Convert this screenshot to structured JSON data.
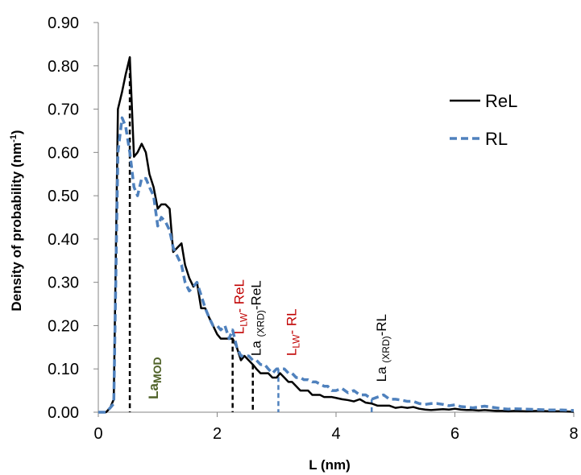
{
  "chart_data": {
    "type": "line",
    "xlabel": "L (nm)",
    "ylabel": "Density of probability (nm",
    "ylabel_sup": "-1",
    "ylabel_close": ")",
    "xlim": [
      0,
      8
    ],
    "ylim": [
      0,
      0.9
    ],
    "x_ticks": [
      0,
      2,
      4,
      6,
      8
    ],
    "x_tick_labels": [
      "0",
      "2",
      "4",
      "6",
      "8"
    ],
    "y_ticks": [
      0,
      0.1,
      0.2,
      0.3,
      0.4,
      0.5,
      0.6,
      0.7,
      0.8,
      0.9
    ],
    "y_tick_labels": [
      "0.00",
      "0.10",
      "0.20",
      "0.30",
      "0.40",
      "0.50",
      "0.60",
      "0.70",
      "0.80",
      "0.90"
    ],
    "grid": false,
    "legend_position": "top-right",
    "series": [
      {
        "name": "ReL",
        "color": "#000000",
        "style": "solid",
        "points": [
          [
            0.0,
            0.0
          ],
          [
            0.13,
            0.0
          ],
          [
            0.2,
            0.01
          ],
          [
            0.26,
            0.03
          ],
          [
            0.33,
            0.7
          ],
          [
            0.4,
            0.74
          ],
          [
            0.46,
            0.78
          ],
          [
            0.53,
            0.82
          ],
          [
            0.6,
            0.59
          ],
          [
            0.66,
            0.6
          ],
          [
            0.73,
            0.62
          ],
          [
            0.8,
            0.6
          ],
          [
            0.86,
            0.55
          ],
          [
            0.93,
            0.52
          ],
          [
            1.0,
            0.47
          ],
          [
            1.06,
            0.48
          ],
          [
            1.13,
            0.48
          ],
          [
            1.2,
            0.47
          ],
          [
            1.26,
            0.37
          ],
          [
            1.33,
            0.38
          ],
          [
            1.4,
            0.39
          ],
          [
            1.46,
            0.34
          ],
          [
            1.53,
            0.31
          ],
          [
            1.6,
            0.29
          ],
          [
            1.66,
            0.3
          ],
          [
            1.73,
            0.24
          ],
          [
            1.8,
            0.24
          ],
          [
            1.86,
            0.22
          ],
          [
            1.93,
            0.2
          ],
          [
            2.0,
            0.18
          ],
          [
            2.06,
            0.17
          ],
          [
            2.13,
            0.17
          ],
          [
            2.2,
            0.17
          ],
          [
            2.26,
            0.17
          ],
          [
            2.33,
            0.15
          ],
          [
            2.4,
            0.12
          ],
          [
            2.46,
            0.13
          ],
          [
            2.53,
            0.12
          ],
          [
            2.6,
            0.11
          ],
          [
            2.66,
            0.1
          ],
          [
            2.73,
            0.09
          ],
          [
            2.8,
            0.09
          ],
          [
            2.86,
            0.09
          ],
          [
            2.93,
            0.08
          ],
          [
            3.0,
            0.08
          ],
          [
            3.06,
            0.09
          ],
          [
            3.13,
            0.08
          ],
          [
            3.2,
            0.07
          ],
          [
            3.26,
            0.07
          ],
          [
            3.33,
            0.06
          ],
          [
            3.4,
            0.05
          ],
          [
            3.46,
            0.05
          ],
          [
            3.53,
            0.05
          ],
          [
            3.6,
            0.04
          ],
          [
            3.66,
            0.04
          ],
          [
            3.73,
            0.04
          ],
          [
            3.8,
            0.035
          ],
          [
            3.86,
            0.035
          ],
          [
            3.93,
            0.035
          ],
          [
            4.0,
            0.033
          ],
          [
            4.1,
            0.03
          ],
          [
            4.2,
            0.028
          ],
          [
            4.3,
            0.025
          ],
          [
            4.4,
            0.03
          ],
          [
            4.5,
            0.022
          ],
          [
            4.6,
            0.02
          ],
          [
            4.7,
            0.015
          ],
          [
            4.8,
            0.015
          ],
          [
            4.9,
            0.015
          ],
          [
            5.0,
            0.01
          ],
          [
            5.1,
            0.012
          ],
          [
            5.2,
            0.01
          ],
          [
            5.3,
            0.012
          ],
          [
            5.4,
            0.008
          ],
          [
            5.5,
            0.006
          ],
          [
            5.6,
            0.005
          ],
          [
            5.7,
            0.006
          ],
          [
            5.8,
            0.007
          ],
          [
            5.9,
            0.006
          ],
          [
            6.0,
            0.008
          ],
          [
            6.1,
            0.006
          ],
          [
            6.2,
            0.005
          ],
          [
            6.3,
            0.005
          ],
          [
            6.4,
            0.004
          ],
          [
            6.5,
            0.005
          ],
          [
            6.6,
            0.004
          ],
          [
            6.7,
            0.003
          ],
          [
            6.8,
            0.003
          ],
          [
            6.9,
            0.002
          ],
          [
            7.0,
            0.003
          ],
          [
            7.2,
            0.002
          ],
          [
            7.4,
            0.003
          ],
          [
            7.6,
            0.002
          ],
          [
            7.8,
            0.002
          ],
          [
            8.0,
            0.001
          ]
        ]
      },
      {
        "name": "RL",
        "color": "#4f81bd",
        "style": "dashed",
        "points": [
          [
            0.0,
            0.0
          ],
          [
            0.13,
            0.0
          ],
          [
            0.2,
            0.01
          ],
          [
            0.26,
            0.02
          ],
          [
            0.33,
            0.6
          ],
          [
            0.4,
            0.68
          ],
          [
            0.46,
            0.66
          ],
          [
            0.53,
            0.6
          ],
          [
            0.6,
            0.52
          ],
          [
            0.66,
            0.5
          ],
          [
            0.73,
            0.54
          ],
          [
            0.8,
            0.54
          ],
          [
            0.86,
            0.52
          ],
          [
            0.93,
            0.5
          ],
          [
            1.0,
            0.43
          ],
          [
            1.06,
            0.45
          ],
          [
            1.13,
            0.44
          ],
          [
            1.2,
            0.42
          ],
          [
            1.26,
            0.38
          ],
          [
            1.33,
            0.36
          ],
          [
            1.4,
            0.34
          ],
          [
            1.46,
            0.3
          ],
          [
            1.53,
            0.28
          ],
          [
            1.6,
            0.29
          ],
          [
            1.66,
            0.3
          ],
          [
            1.73,
            0.27
          ],
          [
            1.8,
            0.24
          ],
          [
            1.86,
            0.22
          ],
          [
            1.93,
            0.2
          ],
          [
            2.0,
            0.2
          ],
          [
            2.06,
            0.19
          ],
          [
            2.13,
            0.2
          ],
          [
            2.2,
            0.17
          ],
          [
            2.26,
            0.19
          ],
          [
            2.33,
            0.15
          ],
          [
            2.4,
            0.13
          ],
          [
            2.46,
            0.13
          ],
          [
            2.53,
            0.13
          ],
          [
            2.6,
            0.12
          ],
          [
            2.66,
            0.12
          ],
          [
            2.73,
            0.11
          ],
          [
            2.8,
            0.11
          ],
          [
            2.86,
            0.1
          ],
          [
            2.93,
            0.09
          ],
          [
            3.0,
            0.1
          ],
          [
            3.06,
            0.1
          ],
          [
            3.13,
            0.1
          ],
          [
            3.2,
            0.09
          ],
          [
            3.26,
            0.09
          ],
          [
            3.33,
            0.08
          ],
          [
            3.4,
            0.08
          ],
          [
            3.46,
            0.075
          ],
          [
            3.53,
            0.075
          ],
          [
            3.6,
            0.07
          ],
          [
            3.66,
            0.07
          ],
          [
            3.73,
            0.065
          ],
          [
            3.8,
            0.06
          ],
          [
            3.86,
            0.06
          ],
          [
            3.93,
            0.05
          ],
          [
            4.0,
            0.05
          ],
          [
            4.1,
            0.055
          ],
          [
            4.2,
            0.045
          ],
          [
            4.3,
            0.05
          ],
          [
            4.4,
            0.04
          ],
          [
            4.5,
            0.04
          ],
          [
            4.6,
            0.03
          ],
          [
            4.7,
            0.035
          ],
          [
            4.8,
            0.04
          ],
          [
            4.9,
            0.03
          ],
          [
            5.0,
            0.03
          ],
          [
            5.1,
            0.028
          ],
          [
            5.2,
            0.025
          ],
          [
            5.3,
            0.025
          ],
          [
            5.4,
            0.02
          ],
          [
            5.5,
            0.018
          ],
          [
            5.6,
            0.02
          ],
          [
            5.7,
            0.02
          ],
          [
            5.8,
            0.018
          ],
          [
            5.9,
            0.015
          ],
          [
            6.0,
            0.017
          ],
          [
            6.1,
            0.013
          ],
          [
            6.2,
            0.012
          ],
          [
            6.3,
            0.01
          ],
          [
            6.4,
            0.012
          ],
          [
            6.5,
            0.014
          ],
          [
            6.6,
            0.012
          ],
          [
            6.7,
            0.01
          ],
          [
            6.8,
            0.008
          ],
          [
            6.9,
            0.007
          ],
          [
            7.0,
            0.008
          ],
          [
            7.2,
            0.007
          ],
          [
            7.4,
            0.006
          ],
          [
            7.6,
            0.005
          ],
          [
            7.8,
            0.005
          ],
          [
            8.0,
            0.004
          ]
        ]
      }
    ],
    "markers": [
      {
        "x": 0.53,
        "y": 0.82,
        "color": "#000000"
      },
      {
        "x": 2.26,
        "y": 0.17,
        "color": "#000000"
      },
      {
        "x": 2.6,
        "y": 0.11,
        "color": "#000000"
      },
      {
        "x": 3.03,
        "y": 0.1,
        "color": "#4f81bd"
      },
      {
        "x": 4.6,
        "y": 0.03,
        "color": "#4f81bd"
      }
    ],
    "annotations": [
      {
        "id": "lamod",
        "main": "La",
        "sub": "MOD",
        "suffix": "",
        "color": "#4f6228",
        "bold": true,
        "x": 1.0,
        "y": 0.03
      },
      {
        "id": "llw-rel",
        "main": "L",
        "sub": "LW",
        "suffix": "- ReL",
        "color": "#c00000",
        "bold": false,
        "x": 2.45,
        "y": 0.18
      },
      {
        "id": "la-xrd-rel",
        "main": "La ",
        "sub": "(XRD)",
        "suffix": "-ReL",
        "color": "#000000",
        "bold": false,
        "x": 2.73,
        "y": 0.13
      },
      {
        "id": "llw-rl",
        "main": "L",
        "sub": "LW",
        "suffix": "- RL",
        "color": "#c00000",
        "bold": false,
        "x": 3.33,
        "y": 0.13
      },
      {
        "id": "la-xrd-rl",
        "main": "La ",
        "sub": "(XRD)",
        "suffix": "-RL",
        "color": "#000000",
        "bold": false,
        "x": 4.84,
        "y": 0.07
      }
    ]
  }
}
